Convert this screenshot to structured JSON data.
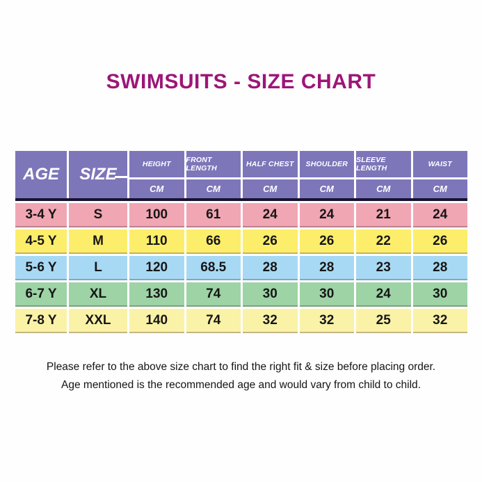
{
  "title": "SWIMSUITS - SIZE CHART",
  "colors": {
    "title_text": "#9c1677",
    "header_bg": "#7d76b9",
    "header_text": "#ffffff",
    "header_divider": "#17122e",
    "row_pink": "#f1a6b4",
    "row_yellow": "#fcee6b",
    "row_blue": "#a8d9f4",
    "row_green": "#9dd3a5",
    "row_pale_yellow": "#faf2a7",
    "body_text": "#161616",
    "background": "#fefefe"
  },
  "chart_data": {
    "type": "table",
    "title": "SWIMSUITS - SIZE CHART",
    "columns": [
      {
        "label": "AGE"
      },
      {
        "label": "SIZE"
      },
      {
        "label": "HEIGHT",
        "unit": "CM"
      },
      {
        "label": "FRONT LENGTH",
        "unit": "CM"
      },
      {
        "label": "HALF CHEST",
        "unit": "CM"
      },
      {
        "label": "SHOULDER",
        "unit": "CM"
      },
      {
        "label": "SLEEVE LENGTH",
        "unit": "CM"
      },
      {
        "label": "WAIST",
        "unit": "CM"
      }
    ],
    "rows": [
      {
        "age": "3-4 Y",
        "size": "S",
        "height": "100",
        "front_length": "61",
        "half_chest": "24",
        "shoulder": "24",
        "sleeve_length": "21",
        "waist": "24"
      },
      {
        "age": "4-5 Y",
        "size": "M",
        "height": "110",
        "front_length": "66",
        "half_chest": "26",
        "shoulder": "26",
        "sleeve_length": "22",
        "waist": "26"
      },
      {
        "age": "5-6 Y",
        "size": "L",
        "height": "120",
        "front_length": "68.5",
        "half_chest": "28",
        "shoulder": "28",
        "sleeve_length": "23",
        "waist": "28"
      },
      {
        "age": "6-7 Y",
        "size": "XL",
        "height": "130",
        "front_length": "74",
        "half_chest": "30",
        "shoulder": "30",
        "sleeve_length": "24",
        "waist": "30"
      },
      {
        "age": "7-8 Y",
        "size": "XXL",
        "height": "140",
        "front_length": "74",
        "half_chest": "32",
        "shoulder": "32",
        "sleeve_length": "25",
        "waist": "32"
      }
    ]
  },
  "footer": {
    "line1": "Please refer to the above size chart to find the right fit & size before placing order.",
    "line2": "Age mentioned is the recommended age and would vary from child to child."
  }
}
